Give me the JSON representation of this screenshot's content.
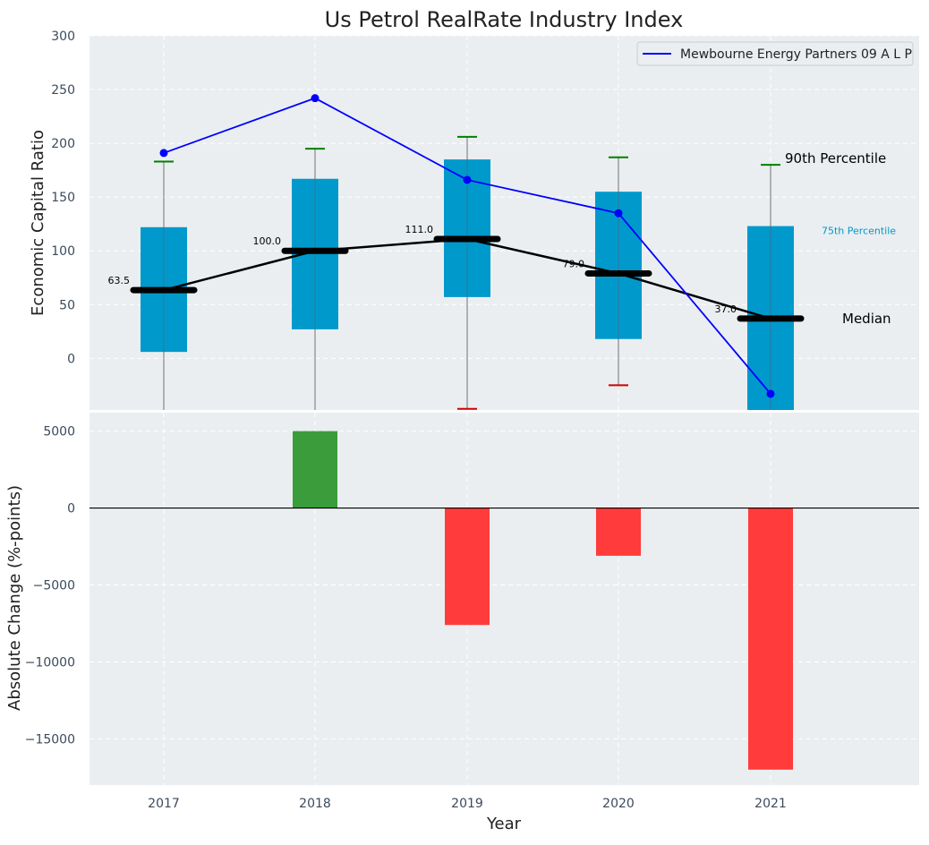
{
  "chart_data": [
    {
      "type": "box_line",
      "title": "Us Petrol RealRate Industry Index",
      "ylabel": "Economic Capital Ratio",
      "ylim": [
        -48,
        300
      ],
      "yticks": [
        0,
        50,
        100,
        150,
        200,
        250,
        300
      ],
      "categories": [
        "2017",
        "2018",
        "2019",
        "2020",
        "2021"
      ],
      "boxes": [
        {
          "year": "2017",
          "p25": 6,
          "p75": 122,
          "median": 63.5,
          "p90": 183,
          "p10": null
        },
        {
          "year": "2018",
          "p25": 27,
          "p75": 167,
          "median": 100.0,
          "p90": 195,
          "p10": null
        },
        {
          "year": "2019",
          "p25": 57,
          "p75": 185,
          "median": 111.0,
          "p90": 206,
          "p10": -47
        },
        {
          "year": "2020",
          "p25": 18,
          "p75": 155,
          "median": 79.0,
          "p90": 187,
          "p10": -25
        },
        {
          "year": "2021",
          "p25": -48,
          "p75": 123,
          "median": 37.0,
          "p90": 180,
          "p10": null
        }
      ],
      "median_labels": [
        "63.5",
        "100.0",
        "111.0",
        "79.0",
        "37.0"
      ],
      "series": [
        {
          "name": "Mewbourne Energy Partners 09 A L P",
          "values": [
            191,
            242,
            166,
            135,
            -33
          ],
          "color": "#0000ff"
        }
      ],
      "annotations": {
        "p90": "90th Percentile",
        "p75": "75th Percentile",
        "median": "Median"
      },
      "legend_position": "top-right",
      "grid": true,
      "colors": {
        "box": "#0099cc",
        "median": "#000000",
        "whisker_top": "#008000",
        "whisker_bottom": "#cc0000",
        "line": "#0000ff",
        "background": "#eaeef0"
      }
    },
    {
      "type": "bar",
      "ylabel": "Absolute Change (%-points)",
      "xlabel": "Year",
      "ylim": [
        -18000,
        6200
      ],
      "yticks": [
        5000,
        0,
        -5000,
        -10000,
        -15000
      ],
      "ytick_labels": [
        "5000",
        "0",
        "−5000",
        "−10000",
        "−15000"
      ],
      "categories": [
        "2017",
        "2018",
        "2019",
        "2020",
        "2021"
      ],
      "values": [
        0,
        5000,
        -7600,
        -3100,
        -17000
      ],
      "colors": {
        "positive": "#3a9c3a",
        "negative": "#ff3b3b"
      }
    }
  ]
}
